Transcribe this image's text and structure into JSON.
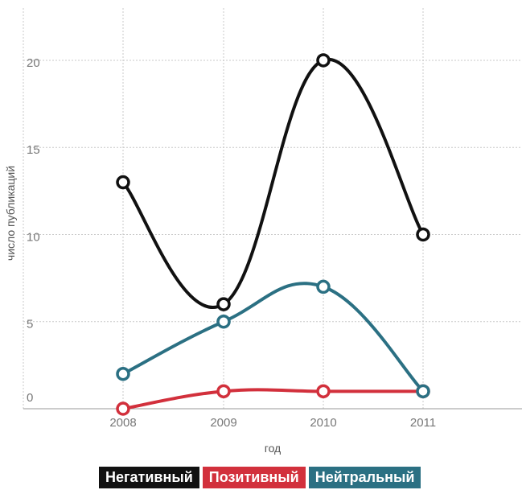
{
  "chart_data": {
    "type": "line",
    "title": "",
    "xlabel": "год",
    "ylabel": "число публикаций",
    "categories": [
      "2008",
      "2009",
      "2010",
      "2011"
    ],
    "ylim": [
      0,
      23
    ],
    "yticks": [
      "0",
      "5",
      "10",
      "15",
      "20"
    ],
    "grid": true,
    "smooth": true,
    "legend_position": "bottom",
    "series": [
      {
        "name": "Негативный",
        "color": "#111111",
        "values": [
          13,
          6,
          20,
          10
        ]
      },
      {
        "name": "Позитивный",
        "color": "#d2303c",
        "values": [
          0,
          1,
          1,
          1
        ]
      },
      {
        "name": "Нейтральный",
        "color": "#2b7083",
        "values": [
          2,
          5,
          7,
          1
        ]
      }
    ]
  }
}
